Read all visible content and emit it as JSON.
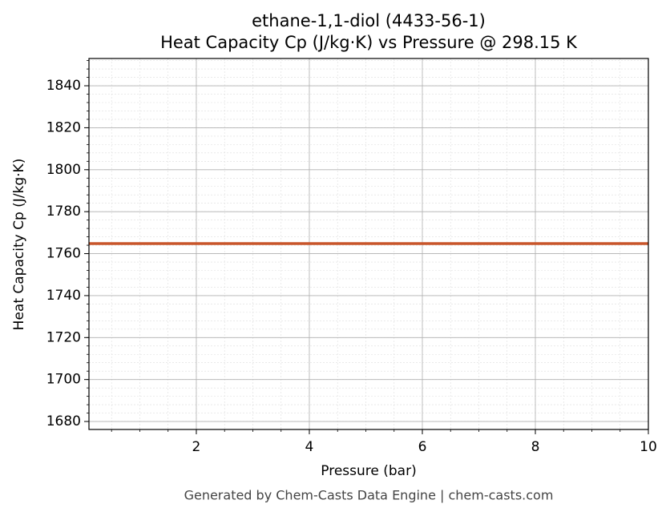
{
  "chart_data": {
    "type": "line",
    "title": "ethane-1,1-diol (4433-56-1)",
    "subtitle": "Heat Capacity Cp (J/kg·K) vs Pressure @ 298.15 K",
    "x_label": "Pressure (bar)",
    "y_label": "Heat Capacity Cp (J/kg·K)",
    "x": [
      0.1,
      10
    ],
    "series": [
      {
        "name": "Cp",
        "color": "#c8552a",
        "values": [
          1764.8,
          1764.8
        ]
      }
    ],
    "xlim": [
      0.1,
      10
    ],
    "xticks": [
      2,
      4,
      6,
      8,
      10
    ],
    "ylim": [
      1676.2,
      1853
    ],
    "yticks": [
      1680,
      1700,
      1720,
      1740,
      1760,
      1780,
      1800,
      1820,
      1840
    ],
    "grid": true,
    "minor_grid": true
  },
  "footer": "Generated by Chem-Casts Data Engine | chem-casts.com"
}
